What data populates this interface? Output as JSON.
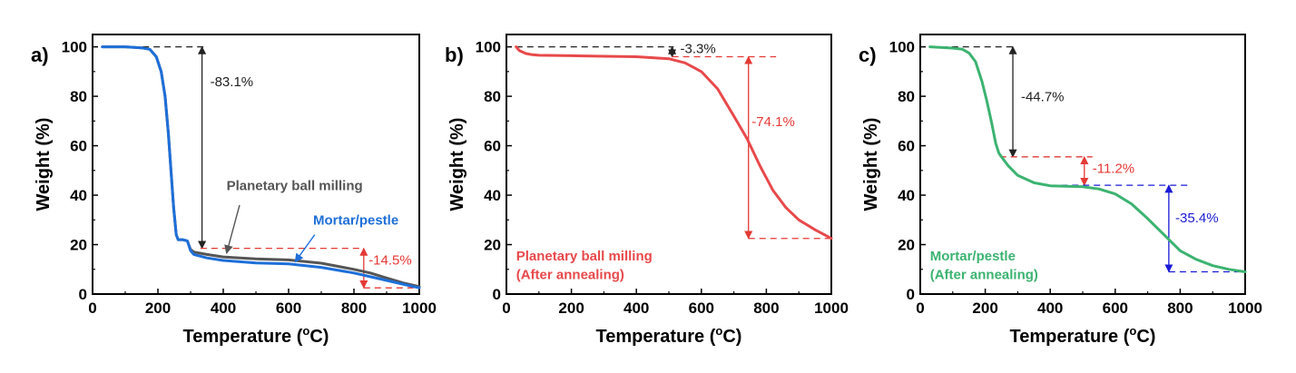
{
  "chart_data": [
    {
      "type": "line",
      "panel_label": "a)",
      "xlabel_main": "Temperature (",
      "xlabel_sup": "o",
      "xlabel_end": "C)",
      "ylabel": "Weight (%)",
      "xlim": [
        0,
        1000
      ],
      "ylim": [
        0,
        105
      ],
      "xticks": [
        0,
        200,
        400,
        600,
        800,
        1000
      ],
      "yticks": [
        0,
        20,
        40,
        60,
        80,
        100
      ],
      "colors": {
        "black": "#222222",
        "red": "#e53935"
      },
      "series": [
        {
          "name": "Planetary ball milling",
          "color": "#555555",
          "x": [
            30,
            100,
            150,
            175,
            195,
            210,
            222,
            232,
            240,
            248,
            256,
            262,
            275,
            290,
            300,
            310,
            350,
            400,
            500,
            600,
            700,
            800,
            850,
            900,
            950,
            1000
          ],
          "y": [
            100,
            100,
            99.6,
            99,
            96,
            90,
            80,
            65,
            50,
            35,
            24,
            22,
            22,
            21.5,
            18,
            17,
            16,
            15,
            14.2,
            13.8,
            12.5,
            10,
            8.5,
            6.5,
            4.5,
            3
          ]
        },
        {
          "name": "Mortar/pestle",
          "color": "#1e6fd9",
          "x": [
            30,
            100,
            150,
            175,
            195,
            210,
            222,
            232,
            240,
            248,
            256,
            262,
            275,
            290,
            300,
            310,
            350,
            400,
            500,
            600,
            700,
            800,
            850,
            900,
            950,
            1000
          ],
          "y": [
            100,
            100,
            99.6,
            99,
            96,
            90,
            80,
            65,
            50,
            35,
            24,
            22,
            22,
            21.5,
            17.5,
            16,
            14.6,
            13.6,
            12.6,
            12.2,
            10.8,
            8.5,
            7,
            5.5,
            4,
            2.5
          ]
        }
      ],
      "series_labels": [
        {
          "text": "Planetary ball milling",
          "color": "#555555"
        },
        {
          "text": "Mortar/pestle",
          "color": "#1e6fd9"
        }
      ],
      "annotations": [
        {
          "text": "-83.1%",
          "color": "#222222"
        },
        {
          "text": "-14.5%",
          "color": "#e53935"
        }
      ]
    },
    {
      "type": "line",
      "panel_label": "b)",
      "xlabel_main": "Temperature (",
      "xlabel_sup": "o",
      "xlabel_end": "C)",
      "ylabel": "Weight (%)",
      "xlim": [
        0,
        1000
      ],
      "ylim": [
        0,
        105
      ],
      "xticks": [
        0,
        200,
        400,
        600,
        800,
        1000
      ],
      "yticks": [
        0,
        20,
        40,
        60,
        80,
        100
      ],
      "series": [
        {
          "name": "Planetary ball milling (After annealing)",
          "color": "#e8494b",
          "x": [
            30,
            40,
            60,
            80,
            100,
            200,
            300,
            400,
            500,
            550,
            600,
            650,
            700,
            740,
            780,
            820,
            860,
            900,
            950,
            1000
          ],
          "y": [
            100,
            98.5,
            97.3,
            96.8,
            96.6,
            96.4,
            96.2,
            96,
            95.2,
            93.5,
            90,
            83,
            72,
            63,
            52,
            42,
            35,
            30,
            26,
            22.5
          ]
        }
      ],
      "series_labels": [
        {
          "text": "Planetary ball milling",
          "color": "#e8494b"
        },
        {
          "text": "(After annealing)",
          "color": "#e8494b"
        }
      ],
      "annotations": [
        {
          "text": "-3.3%",
          "color": "#222222"
        },
        {
          "text": "-74.1%",
          "color": "#e53935"
        }
      ]
    },
    {
      "type": "line",
      "panel_label": "c)",
      "xlabel_main": "Temperature (",
      "xlabel_sup": "o",
      "xlabel_end": "C)",
      "ylabel": "Weight (%)",
      "xlim": [
        0,
        1000
      ],
      "ylim": [
        0,
        105
      ],
      "xticks": [
        0,
        200,
        400,
        600,
        800,
        1000
      ],
      "yticks": [
        0,
        20,
        40,
        60,
        80,
        100
      ],
      "series": [
        {
          "name": "Mortar/pestle (After annealing)",
          "color": "#3cb371",
          "x": [
            30,
            100,
            130,
            150,
            170,
            190,
            205,
            220,
            232,
            242,
            250,
            270,
            300,
            350,
            400,
            500,
            550,
            600,
            650,
            700,
            750,
            800,
            850,
            900,
            950,
            1000
          ],
          "y": [
            100,
            99.5,
            99,
            97.5,
            94,
            86,
            78,
            69,
            61,
            57,
            55.5,
            52,
            48,
            45,
            43.8,
            43.4,
            42.5,
            40.5,
            36.5,
            30.5,
            24,
            17.5,
            14,
            11.5,
            10,
            9
          ]
        }
      ],
      "series_labels": [
        {
          "text": "Mortar/pestle",
          "color": "#3cb371"
        },
        {
          "text": "(After annealing)",
          "color": "#3cb371"
        }
      ],
      "annotations": [
        {
          "text": "-44.7%",
          "color": "#222222"
        },
        {
          "text": "-11.2%",
          "color": "#e53935"
        },
        {
          "text": "-35.4%",
          "color": "#1a1ad6"
        }
      ]
    }
  ]
}
